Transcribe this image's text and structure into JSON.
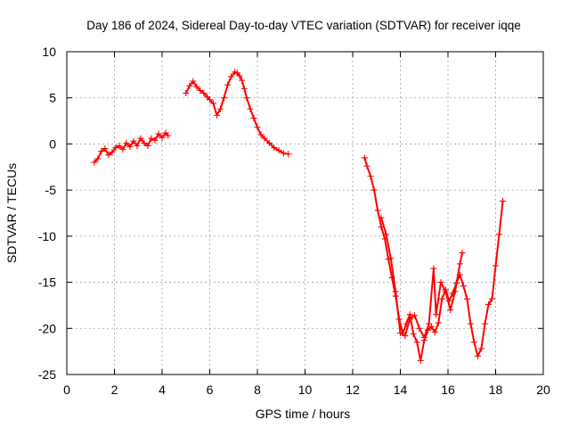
{
  "chart_data": {
    "type": "scatter",
    "title": "Day 186 of 2024, Sidereal Day-to-day VTEC variation (SDTVAR) for receiver iqqe",
    "xlabel": "GPS time / hours",
    "ylabel": "SDTVAR / TECUs",
    "xlim": [
      0,
      20
    ],
    "ylim": [
      -25,
      10
    ],
    "xticks": [
      0,
      2,
      4,
      6,
      8,
      10,
      12,
      14,
      16,
      18,
      20
    ],
    "yticks": [
      -25,
      -20,
      -15,
      -10,
      -5,
      0,
      5,
      10
    ],
    "grid": true,
    "marker": "+",
    "color": "#ff0000",
    "series": [
      {
        "name": "segment-1",
        "x": [
          1.15,
          1.3,
          1.45,
          1.6,
          1.75,
          1.9,
          2.05,
          2.2,
          2.35,
          2.5,
          2.65,
          2.8,
          2.95,
          3.1,
          3.25,
          3.4,
          3.55,
          3.7,
          3.85,
          4.0,
          4.15,
          4.25
        ],
        "y": [
          -2.0,
          -1.6,
          -0.8,
          -0.5,
          -1.2,
          -0.9,
          -0.4,
          -0.2,
          -0.6,
          0.1,
          -0.3,
          0.3,
          -0.2,
          0.6,
          0.1,
          -0.2,
          0.6,
          0.4,
          1.1,
          0.7,
          1.2,
          0.9
        ]
      },
      {
        "name": "segment-2",
        "x": [
          5.0,
          5.15,
          5.3,
          5.45,
          5.6,
          5.75,
          5.9,
          6.0,
          6.15,
          6.3,
          6.45,
          6.6,
          6.75,
          6.9,
          7.05,
          7.15,
          7.25,
          7.35,
          7.45,
          7.55,
          7.7,
          7.85,
          8.0,
          8.15,
          8.3,
          8.5,
          8.7,
          8.9,
          9.1,
          9.3
        ],
        "y": [
          5.5,
          6.3,
          6.8,
          6.2,
          5.8,
          5.5,
          5.1,
          4.8,
          4.4,
          3.1,
          3.8,
          5.0,
          6.4,
          7.3,
          7.8,
          7.7,
          7.4,
          6.9,
          6.0,
          5.0,
          3.8,
          2.8,
          1.8,
          1.0,
          0.6,
          0.1,
          -0.4,
          -0.7,
          -1.0,
          -1.1
        ]
      },
      {
        "name": "segment-3",
        "x": [
          12.5,
          12.6,
          12.75,
          12.9,
          13.05,
          13.2,
          13.35,
          13.5,
          13.65,
          13.8,
          13.95,
          14.1,
          14.25,
          14.4,
          14.55,
          14.7,
          14.85,
          15.0,
          15.15,
          15.3,
          15.45,
          15.6,
          15.75,
          15.9,
          16.05,
          16.2,
          16.35,
          16.5,
          16.65,
          16.8,
          16.95,
          17.1,
          17.25,
          17.4,
          17.55,
          17.7,
          17.85,
          18.0,
          18.15,
          18.3
        ],
        "y": [
          -1.5,
          -2.4,
          -3.5,
          -5.0,
          -7.2,
          -9.0,
          -10.3,
          -12.5,
          -14.5,
          -16.5,
          -19.0,
          -20.5,
          -19.5,
          -18.5,
          -20.6,
          -21.5,
          -23.5,
          -21.3,
          -20.2,
          -19.8,
          -20.4,
          -19.4,
          -16.8,
          -15.8,
          -17.0,
          -16.2,
          -15.1,
          -14.2,
          -15.4,
          -16.8,
          -19.5,
          -21.5,
          -23.0,
          -22.2,
          -19.5,
          -17.4,
          -16.8,
          -13.2,
          -9.8,
          -6.2
        ]
      },
      {
        "name": "segment-3b",
        "x": [
          13.2,
          13.4,
          13.6,
          13.8,
          14.0,
          14.2,
          14.4,
          14.6,
          14.8,
          15.0,
          15.2,
          15.4,
          15.5,
          15.7,
          15.9,
          16.1,
          16.3,
          16.5,
          16.6
        ],
        "y": [
          -8.0,
          -9.8,
          -12.4,
          -16.0,
          -20.5,
          -20.8,
          -19.0,
          -18.6,
          -20.0,
          -21.0,
          -19.5,
          -13.5,
          -18.5,
          -15.0,
          -16.0,
          -18.0,
          -16.0,
          -13.0,
          -11.8
        ]
      }
    ]
  }
}
